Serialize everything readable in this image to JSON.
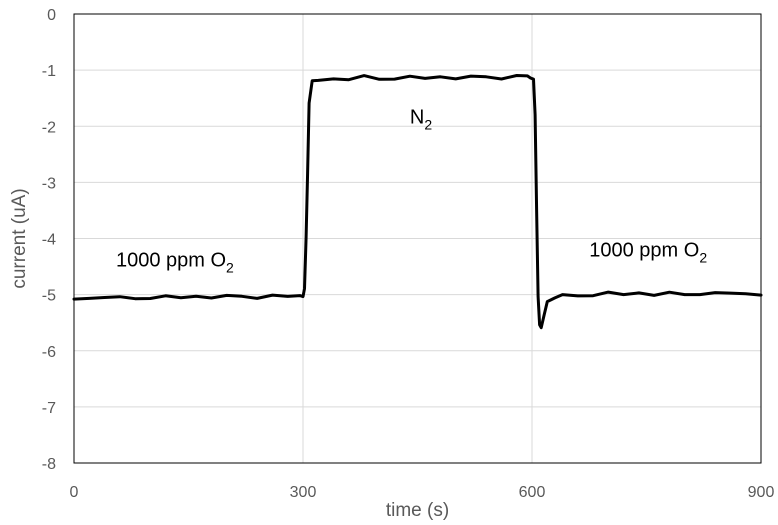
{
  "chart_data": {
    "type": "line",
    "title": "",
    "xlabel": "time (s)",
    "ylabel": "current (uA)",
    "xlim": [
      0,
      900
    ],
    "ylim": [
      -8,
      0
    ],
    "xticks": [
      0,
      300,
      600,
      900
    ],
    "yticks": [
      0,
      -1,
      -2,
      -3,
      -4,
      -5,
      -6,
      -7,
      -8
    ],
    "grid": true,
    "colors": {
      "line": "#000000",
      "grid": "#d9d9d9",
      "axis_text": "#595959"
    },
    "series": [
      {
        "x": [
          0,
          20,
          40,
          60,
          80,
          100,
          120,
          140,
          160,
          180,
          200,
          220,
          240,
          260,
          280,
          296,
          300,
          302,
          304,
          306,
          308,
          312,
          320,
          340,
          360,
          380,
          400,
          420,
          440,
          460,
          480,
          500,
          520,
          540,
          560,
          580,
          594,
          598,
          602,
          604,
          606,
          608,
          610,
          612,
          616,
          620,
          630,
          640,
          660,
          680,
          700,
          720,
          740,
          760,
          780,
          800,
          820,
          840,
          860,
          880,
          900
        ],
        "y": [
          -5.08,
          -5.06,
          -5.04,
          -5.07,
          -5.05,
          -5.06,
          -5.04,
          -5.05,
          -5.03,
          -5.04,
          -5.04,
          -5.03,
          -5.04,
          -5.03,
          -5.03,
          -5.02,
          -5.02,
          -4.9,
          -4.0,
          -2.8,
          -1.6,
          -1.2,
          -1.18,
          -1.15,
          -1.16,
          -1.13,
          -1.14,
          -1.15,
          -1.13,
          -1.14,
          -1.12,
          -1.14,
          -1.13,
          -1.12,
          -1.13,
          -1.12,
          -1.1,
          -1.14,
          -1.15,
          -1.8,
          -3.5,
          -5.0,
          -5.55,
          -5.6,
          -5.35,
          -5.12,
          -5.05,
          -5.03,
          -5.0,
          -5.01,
          -4.98,
          -4.99,
          -4.97,
          -5.0,
          -4.98,
          -5.0,
          -4.97,
          -4.99,
          -4.97,
          -4.98,
          -5.0
        ]
      }
    ],
    "annotations": [
      {
        "id": "left",
        "text": "1000 ppm O",
        "sub": "2",
        "x": 55,
        "y": -4.5
      },
      {
        "id": "mid",
        "text": "N",
        "sub": "2",
        "x": 440,
        "y": -1.95
      },
      {
        "id": "right",
        "text": "1000 ppm O",
        "sub": "2",
        "x": 675,
        "y": -4.32
      }
    ]
  }
}
